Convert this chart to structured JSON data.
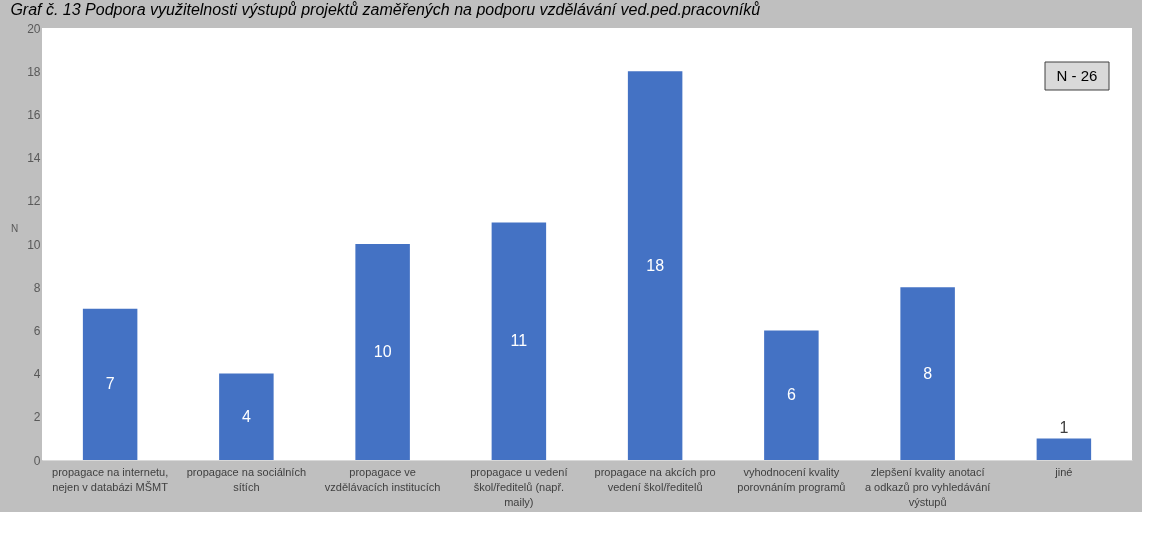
{
  "chart_data": {
    "type": "bar",
    "title": "Graf č. 13 Podpora využitelnosti výstupů projektů zaměřených na podporu vzdělávání ved.ped.pracovníků",
    "ylabel": "N",
    "categories": [
      "propagace na internetu, nejen v databázi MŠMT",
      "propagace na sociálních sítích",
      "propagace ve vzdělávacích institucích",
      "propagace u vedení škol/ředitelů (např. maily)",
      "propagace na akcích pro vedení škol/ředitelů",
      "vyhodnocení kvality porovnáním programů",
      "zlepšení kvality anotací a odkazů pro vyhledávání výstupů",
      "jiné"
    ],
    "values": [
      7,
      4,
      10,
      11,
      18,
      6,
      8,
      1
    ],
    "color": "#4472c4",
    "ylim": [
      0,
      20
    ],
    "yticks": [
      0,
      2,
      4,
      6,
      8,
      10,
      12,
      14,
      16,
      18,
      20
    ],
    "grid": false,
    "data_labels": true,
    "annotations": [
      "N - 26"
    ]
  }
}
